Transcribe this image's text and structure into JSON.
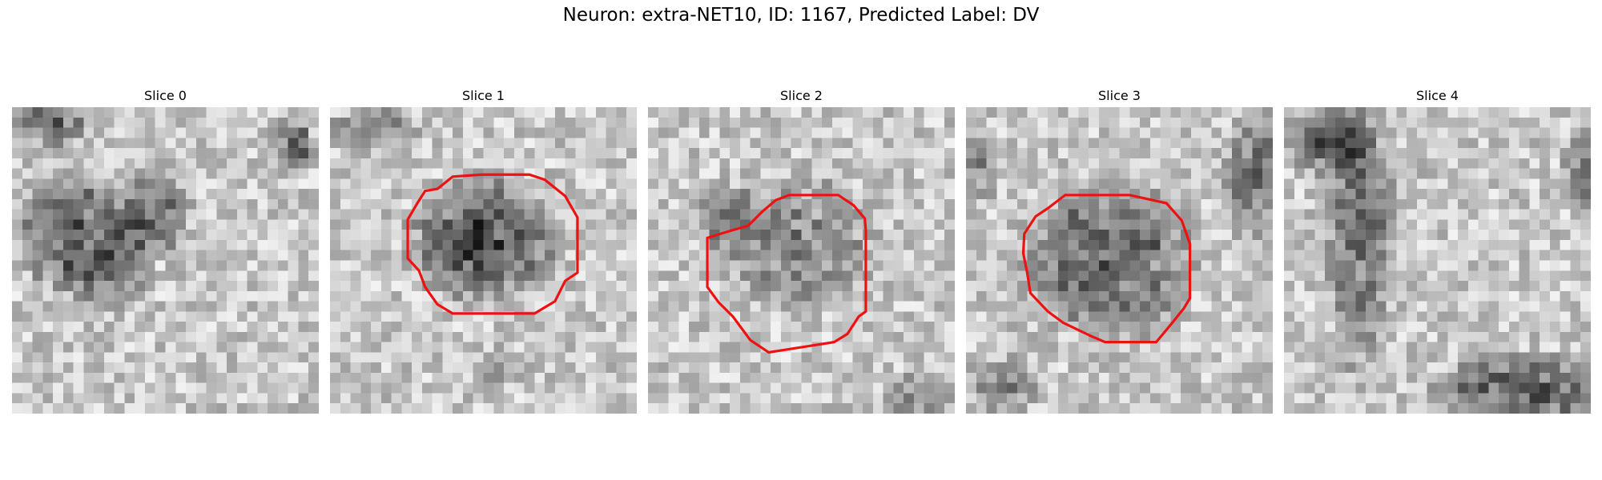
{
  "title": "Neuron: extra-NET10, ID: 1167, Predicted Label: DV",
  "slices": [
    {
      "title": "Slice 0",
      "has_contour": false
    },
    {
      "title": "Slice 1",
      "has_contour": true
    },
    {
      "title": "Slice 2",
      "has_contour": true
    },
    {
      "title": "Slice 3",
      "has_contour": true
    },
    {
      "title": "Slice 4",
      "has_contour": false
    }
  ],
  "colors": {
    "contour": "#ee1111",
    "background": "#ffffff"
  },
  "image_style": "grayscale pixelated microscopy patch"
}
